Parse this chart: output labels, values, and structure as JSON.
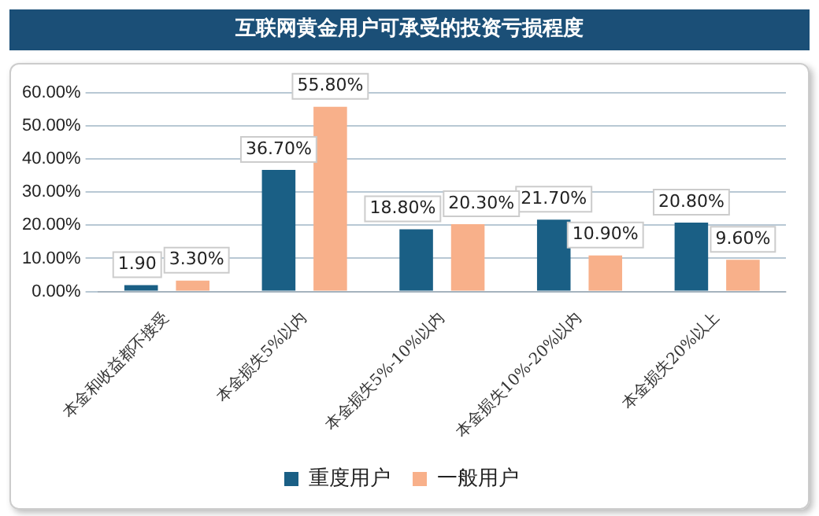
{
  "chart_data": {
    "type": "bar",
    "title": "互联网黄金用户可承受的投资亏损程度",
    "categories": [
      "本金和收益都不接受",
      "本金损失5%以内",
      "本金损失5%-10%以内",
      "本金损失10%-20%以内",
      "本金损失20%以上"
    ],
    "series": [
      {
        "name": "重度用户",
        "color": "#1a5f85",
        "values": [
          1.9,
          36.7,
          18.8,
          21.7,
          20.8
        ],
        "value_labels": [
          "1.90",
          "36.70%",
          "18.80%",
          "21.70%",
          "20.80%"
        ]
      },
      {
        "name": "一般用户",
        "color": "#f8b08a",
        "values": [
          3.3,
          55.8,
          20.3,
          10.9,
          9.6
        ],
        "value_labels": [
          "3.30%",
          "55.80%",
          "20.30%",
          "10.90%",
          "9.60%"
        ]
      }
    ],
    "ylim": [
      0,
      60
    ],
    "yticks": [
      {
        "value": 0,
        "label": "0.00%"
      },
      {
        "value": 10,
        "label": "10.00%"
      },
      {
        "value": 20,
        "label": "20.00%"
      },
      {
        "value": 30,
        "label": "30.00%"
      },
      {
        "value": 40,
        "label": "40.00%"
      },
      {
        "value": 50,
        "label": "50.00%"
      },
      {
        "value": 60,
        "label": "60.00%"
      }
    ],
    "grid": "y",
    "legend": "bottom"
  }
}
